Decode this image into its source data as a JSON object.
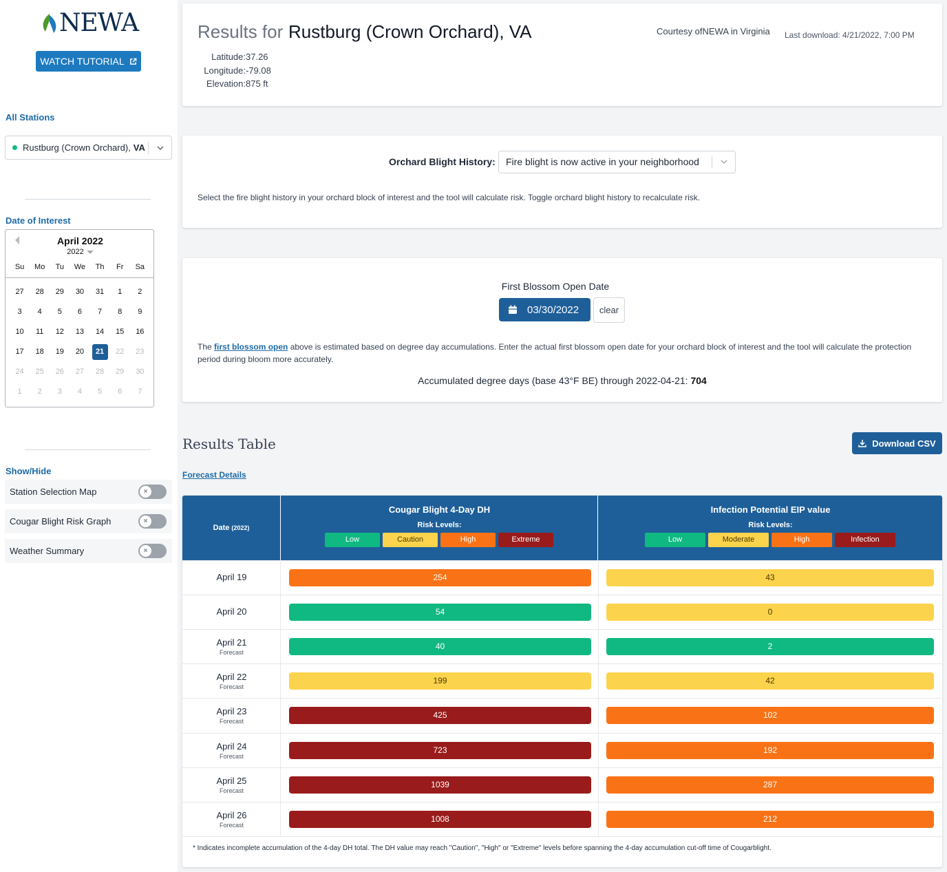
{
  "sidebar": {
    "logo_text": "NEWA",
    "tutorial_label": "WATCH TUTORIAL",
    "stations_label": "All Stations",
    "station_name": "Rustburg (Crown Orchard),",
    "station_state": "VA",
    "date_label": "Date of Interest",
    "calendar": {
      "month_label": "April 2022",
      "year_label": "2022",
      "dows": [
        "Su",
        "Mo",
        "Tu",
        "We",
        "Th",
        "Fr",
        "Sa"
      ],
      "days": [
        {
          "n": "27",
          "out": false
        },
        {
          "n": "28",
          "out": false
        },
        {
          "n": "29",
          "out": false
        },
        {
          "n": "30",
          "out": false
        },
        {
          "n": "31",
          "out": false
        },
        {
          "n": "1",
          "out": false
        },
        {
          "n": "2",
          "out": false
        },
        {
          "n": "3",
          "out": false
        },
        {
          "n": "4",
          "out": false
        },
        {
          "n": "5",
          "out": false
        },
        {
          "n": "6",
          "out": false
        },
        {
          "n": "7",
          "out": false
        },
        {
          "n": "8",
          "out": false
        },
        {
          "n": "9",
          "out": false
        },
        {
          "n": "10",
          "out": false
        },
        {
          "n": "11",
          "out": false
        },
        {
          "n": "12",
          "out": false
        },
        {
          "n": "13",
          "out": false
        },
        {
          "n": "14",
          "out": false
        },
        {
          "n": "15",
          "out": false
        },
        {
          "n": "16",
          "out": false
        },
        {
          "n": "17",
          "out": false
        },
        {
          "n": "18",
          "out": false
        },
        {
          "n": "19",
          "out": false
        },
        {
          "n": "20",
          "out": false
        },
        {
          "n": "21",
          "out": false,
          "selected": true
        },
        {
          "n": "22",
          "out": true
        },
        {
          "n": "23",
          "out": true
        },
        {
          "n": "24",
          "out": true
        },
        {
          "n": "25",
          "out": true
        },
        {
          "n": "26",
          "out": true
        },
        {
          "n": "27",
          "out": true
        },
        {
          "n": "28",
          "out": true
        },
        {
          "n": "29",
          "out": true
        },
        {
          "n": "30",
          "out": true
        },
        {
          "n": "1",
          "out": true
        },
        {
          "n": "2",
          "out": true
        },
        {
          "n": "3",
          "out": true
        },
        {
          "n": "4",
          "out": true
        },
        {
          "n": "5",
          "out": true
        },
        {
          "n": "6",
          "out": true
        },
        {
          "n": "7",
          "out": true
        }
      ]
    },
    "showhide_label": "Show/Hide",
    "toggles": [
      {
        "label": "Station Selection Map",
        "on": false
      },
      {
        "label": "Cougar Blight Risk Graph",
        "on": false
      },
      {
        "label": "Weather Summary",
        "on": false
      }
    ]
  },
  "header": {
    "results_for": "Results for",
    "station_title": "Rustburg (Crown Orchard), VA",
    "lat_label": "Latitude:",
    "lat_value": "37.26",
    "lon_label": "Longitude:",
    "lon_value": "-79.08",
    "elev_label": "Elevation:",
    "elev_value": "875 ft",
    "courtesy": "Courtesy ofNEWA in Virginia",
    "last_download": "Last download: 4/21/2022, 7:00 PM"
  },
  "blight": {
    "label": "Orchard Blight History:",
    "selected": "Fire blight is now active in your neighborhood",
    "help": "Select the fire blight history in your orchard block of interest and the tool will calculate risk. Toggle orchard blight history to recalculate risk."
  },
  "blossom": {
    "label": "First Blossom Open Date",
    "date_value": "03/30/2022",
    "clear_label": "clear",
    "help_pre": "The ",
    "help_link": "first blossom open",
    "help_post": " above is estimated based on degree day accumulations. Enter the actual first blossom open date for your orchard block of interest and the tool will calculate the protection period during bloom more accurately.",
    "accum_text": "Accumulated degree days (base 43°F BE) through 2022-04-21:",
    "accum_value": "704"
  },
  "results": {
    "title": "Results Table",
    "csv_label": "Download CSV",
    "forecast_link": "Forecast Details",
    "date_header": "Date",
    "date_year": "(2022)",
    "cb_header": "Cougar Blight 4-Day DH",
    "ip_header": "Infection Potential EIP value",
    "risk_levels_label": "Risk Levels:",
    "cb_legend": [
      {
        "label": "Low",
        "color": "green"
      },
      {
        "label": "Caution",
        "color": "yellow"
      },
      {
        "label": "High",
        "color": "orange"
      },
      {
        "label": "Extreme",
        "color": "red"
      }
    ],
    "ip_legend": [
      {
        "label": "Low",
        "color": "green"
      },
      {
        "label": "Moderate",
        "color": "yellow"
      },
      {
        "label": "High",
        "color": "orange"
      },
      {
        "label": "Infection",
        "color": "red"
      }
    ],
    "rows": [
      {
        "date": "April 19",
        "forecast": "",
        "cb": "254",
        "cb_color": "orange",
        "ip": "43",
        "ip_color": "yellow"
      },
      {
        "date": "April 20",
        "forecast": "",
        "cb": "54",
        "cb_color": "green",
        "ip": "0",
        "ip_color": "yellow"
      },
      {
        "date": "April 21",
        "forecast": "Forecast",
        "cb": "40",
        "cb_color": "green",
        "ip": "2",
        "ip_color": "green"
      },
      {
        "date": "April 22",
        "forecast": "Forecast",
        "cb": "199",
        "cb_color": "yellow",
        "ip": "42",
        "ip_color": "yellow"
      },
      {
        "date": "April 23",
        "forecast": "Forecast",
        "cb": "425",
        "cb_color": "red",
        "ip": "102",
        "ip_color": "orange"
      },
      {
        "date": "April 24",
        "forecast": "Forecast",
        "cb": "723",
        "cb_color": "red",
        "ip": "192",
        "ip_color": "orange"
      },
      {
        "date": "April 25",
        "forecast": "Forecast",
        "cb": "1039",
        "cb_color": "red",
        "ip": "287",
        "ip_color": "orange"
      },
      {
        "date": "April 26",
        "forecast": "Forecast",
        "cb": "1008",
        "cb_color": "red",
        "ip": "212",
        "ip_color": "orange"
      }
    ],
    "footnote": "* Indicates incomplete accumulation of the 4-day DH total. The DH value may reach \"Caution\", \"High\" or \"Extreme\" levels before spanning the 4-day accumulation cut-off time of Cougarblight."
  },
  "colors": {
    "brand_blue": "#1e5f99",
    "link_blue": "#1e6ba8",
    "low_green": "#10b981",
    "caution_yellow": "#fcd34d",
    "high_orange": "#f97316",
    "extreme_red": "#991b1b"
  }
}
